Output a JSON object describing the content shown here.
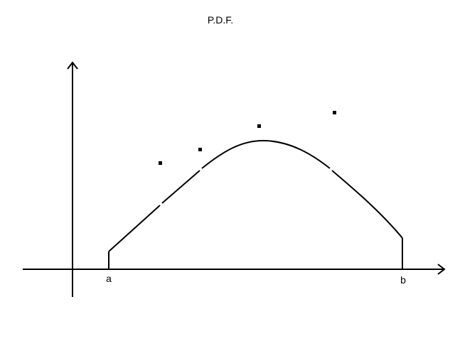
{
  "diagram": {
    "title": "P.D.F.",
    "left_label": "a",
    "right_label": "b",
    "ink_color": "#000000",
    "background_color": "#ffffff"
  }
}
